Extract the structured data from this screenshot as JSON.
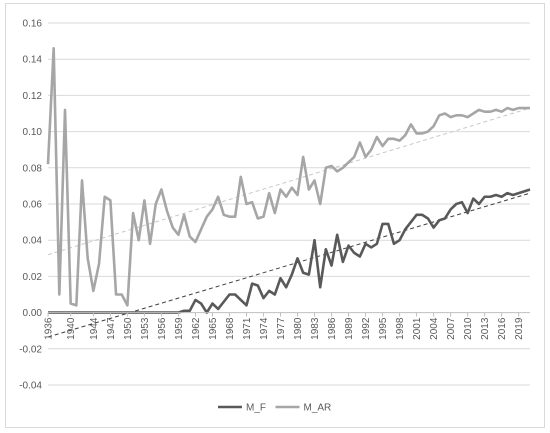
{
  "chart_data": {
    "type": "line",
    "title": "",
    "xlabel": "",
    "ylabel": "",
    "ylim": [
      -0.04,
      0.16
    ],
    "y_ticks": [
      "0.16",
      "0.14",
      "0.12",
      "0.10",
      "0.08",
      "0.06",
      "0.04",
      "0.02",
      "0.00",
      "-0.02",
      "-0.04"
    ],
    "x_ticks": [
      "1936",
      "1940",
      "1944",
      "1947",
      "1950",
      "1953",
      "1956",
      "1959",
      "1962",
      "1965",
      "1968",
      "1971",
      "1974",
      "1977",
      "1980",
      "1983",
      "1986",
      "1989",
      "1992",
      "1995",
      "1998",
      "2001",
      "2004",
      "2007",
      "2010",
      "2013",
      "2016",
      "2019"
    ],
    "x_range": [
      1936,
      2021
    ],
    "grid": "horizontal",
    "legend": "bottom",
    "colors": {
      "M_F": "#595959",
      "M_AR": "#a6a6a6",
      "trend_M_F": "#404040",
      "trend_M_AR": "#c8c8c8",
      "grid": "#d9d9d9"
    },
    "series": [
      {
        "name": "M_F",
        "x": [
          1936,
          1937,
          1938,
          1939,
          1940,
          1941,
          1942,
          1943,
          1944,
          1945,
          1946,
          1947,
          1948,
          1949,
          1950,
          1951,
          1952,
          1953,
          1954,
          1955,
          1956,
          1957,
          1958,
          1959,
          1960,
          1961,
          1962,
          1963,
          1964,
          1965,
          1966,
          1967,
          1968,
          1969,
          1970,
          1971,
          1972,
          1973,
          1974,
          1975,
          1976,
          1977,
          1978,
          1979,
          1980,
          1981,
          1982,
          1983,
          1984,
          1985,
          1986,
          1987,
          1988,
          1989,
          1990,
          1991,
          1992,
          1993,
          1994,
          1995,
          1996,
          1997,
          1998,
          1999,
          2000,
          2001,
          2002,
          2003,
          2004,
          2005,
          2006,
          2007,
          2008,
          2009,
          2010,
          2011,
          2012,
          2013,
          2014,
          2015,
          2016,
          2017,
          2018,
          2019,
          2020,
          2021
        ],
        "values": [
          0,
          0,
          0,
          0,
          0,
          0,
          0,
          0,
          0,
          0,
          0,
          0,
          0,
          0,
          0,
          0,
          0,
          0,
          0,
          0,
          0,
          0,
          0,
          0,
          0.001,
          0.001,
          0.007,
          0.005,
          0,
          0.005,
          0.002,
          0.006,
          0.01,
          0.01,
          0.007,
          0.004,
          0.016,
          0.015,
          0.008,
          0.012,
          0.01,
          0.019,
          0.014,
          0.021,
          0.03,
          0.022,
          0.021,
          0.04,
          0.014,
          0.035,
          0.026,
          0.043,
          0.028,
          0.037,
          0.033,
          0.031,
          0.038,
          0.036,
          0.038,
          0.049,
          0.049,
          0.038,
          0.04,
          0.046,
          0.05,
          0.054,
          0.054,
          0.052,
          0.047,
          0.051,
          0.052,
          0.057,
          0.06,
          0.061,
          0.055,
          0.063,
          0.06,
          0.064,
          0.064,
          0.065,
          0.064,
          0.066,
          0.065,
          0.066,
          0.067,
          0.068
        ]
      },
      {
        "name": "M_AR",
        "x": [
          1936,
          1937,
          1938,
          1939,
          1940,
          1941,
          1942,
          1943,
          1944,
          1945,
          1946,
          1947,
          1948,
          1949,
          1950,
          1951,
          1952,
          1953,
          1954,
          1955,
          1956,
          1957,
          1958,
          1959,
          1960,
          1961,
          1962,
          1963,
          1964,
          1965,
          1966,
          1967,
          1968,
          1969,
          1970,
          1971,
          1972,
          1973,
          1974,
          1975,
          1976,
          1977,
          1978,
          1979,
          1980,
          1981,
          1982,
          1983,
          1984,
          1985,
          1986,
          1987,
          1988,
          1989,
          1990,
          1991,
          1992,
          1993,
          1994,
          1995,
          1996,
          1997,
          1998,
          1999,
          2000,
          2001,
          2002,
          2003,
          2004,
          2005,
          2006,
          2007,
          2008,
          2009,
          2010,
          2011,
          2012,
          2013,
          2014,
          2015,
          2016,
          2017,
          2018,
          2019,
          2020,
          2021
        ],
        "values": [
          0.082,
          0.146,
          0.01,
          0.112,
          0.005,
          0.004,
          0.073,
          0.03,
          0.012,
          0.027,
          0.064,
          0.062,
          0.01,
          0.01,
          0.004,
          0.055,
          0.04,
          0.062,
          0.038,
          0.06,
          0.068,
          0.056,
          0.047,
          0.043,
          0.054,
          0.042,
          0.039,
          0.046,
          0.053,
          0.057,
          0.064,
          0.054,
          0.053,
          0.053,
          0.075,
          0.06,
          0.061,
          0.052,
          0.053,
          0.066,
          0.055,
          0.068,
          0.064,
          0.069,
          0.065,
          0.086,
          0.068,
          0.073,
          0.06,
          0.08,
          0.081,
          0.078,
          0.08,
          0.083,
          0.086,
          0.094,
          0.086,
          0.09,
          0.097,
          0.092,
          0.096,
          0.096,
          0.095,
          0.098,
          0.104,
          0.099,
          0.099,
          0.1,
          0.103,
          0.109,
          0.11,
          0.108,
          0.109,
          0.109,
          0.108,
          0.11,
          0.112,
          0.111,
          0.111,
          0.112,
          0.111,
          0.113,
          0.112,
          0.113,
          0.113,
          0.113
        ]
      }
    ],
    "trendlines": [
      {
        "of": "M_F",
        "x": [
          1936,
          2021
        ],
        "values": [
          -0.0135,
          0.066
        ]
      },
      {
        "of": "M_AR",
        "x": [
          1936,
          2021
        ],
        "values": [
          0.032,
          0.113
        ]
      }
    ]
  }
}
